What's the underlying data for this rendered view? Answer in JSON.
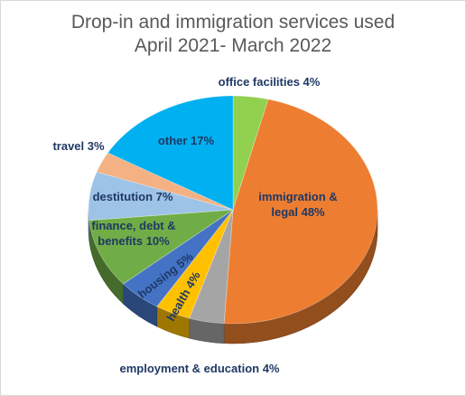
{
  "chart_data": {
    "type": "pie",
    "title": "Drop-in and immigration services used",
    "subtitle": "April 2021- March 2022",
    "unit": "%",
    "slices": [
      {
        "label": "office facilities",
        "value": 4,
        "label_text": "office facilities 4%",
        "color": "#92d050"
      },
      {
        "label": "immigration & legal",
        "value": 48,
        "label_text": "immigration & legal 48%",
        "color": "#ed7d31"
      },
      {
        "label": "employment & education",
        "value": 4,
        "label_text": "employment & education 4%",
        "color": "#a5a5a5"
      },
      {
        "label": "health",
        "value": 4,
        "label_text": "health 4%",
        "color": "#ffc000"
      },
      {
        "label": "housing",
        "value": 5,
        "label_text": "housing 5%",
        "color": "#4472c4"
      },
      {
        "label": "finance, debt & benefits",
        "value": 10,
        "label_text": "finance, debt & benefits 10%",
        "color": "#70ad47"
      },
      {
        "label": "destitution",
        "value": 7,
        "label_text": "destitution 7%",
        "color": "#9dc3e6"
      },
      {
        "label": "travel",
        "value": 3,
        "label_text": "travel 3%",
        "color": "#f4b183"
      },
      {
        "label": "other",
        "value": 17,
        "label_text": "other 17%",
        "color": "#00b0f0"
      }
    ]
  }
}
